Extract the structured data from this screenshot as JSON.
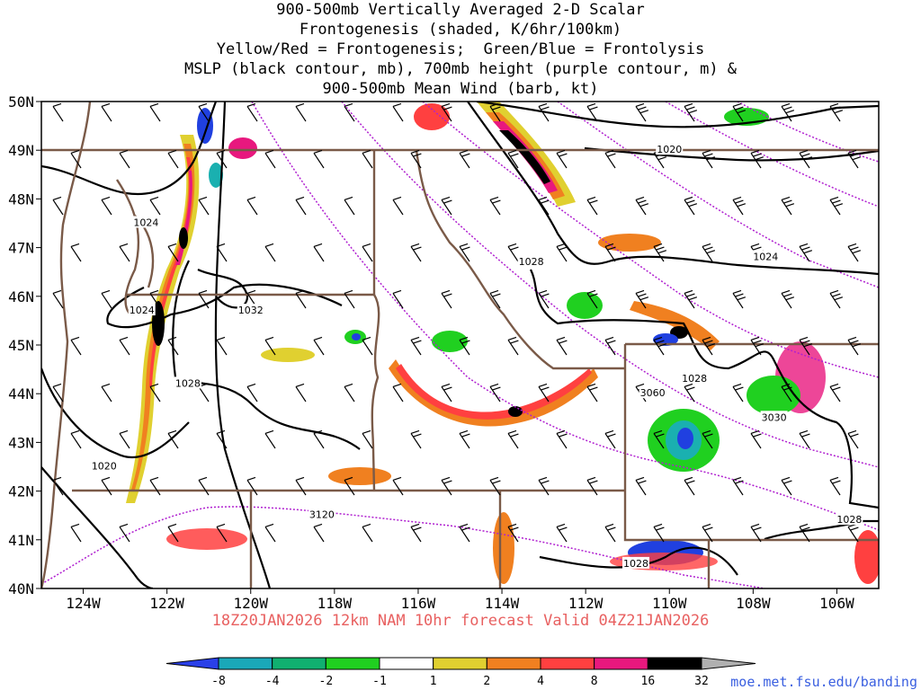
{
  "title": {
    "lines": [
      "900-500mb Vertically Averaged 2-D Scalar",
      "Frontogenesis (shaded, K/6hr/100km)",
      "Yellow/Red = Frontogenesis;  Green/Blue = Frontolysis",
      "MSLP (black contour, mb), 700mb height (purple contour, m) &",
      "900-500mb Mean Wind (barb, kt)"
    ]
  },
  "map": {
    "lat_labels": [
      "50N",
      "49N",
      "48N",
      "47N",
      "46N",
      "45N",
      "44N",
      "43N",
      "42N",
      "41N",
      "40N"
    ],
    "lon_labels": [
      "124W",
      "122W",
      "120W",
      "118W",
      "116W",
      "114W",
      "112W",
      "110W",
      "108W",
      "106W"
    ],
    "lat_range": [
      40,
      50
    ],
    "lon_range": [
      -125,
      -105
    ],
    "mslp_labels": [
      {
        "text": "1020",
        "lon": -110.0,
        "lat": 49.0
      },
      {
        "text": "1024",
        "lon": -122.5,
        "lat": 47.5
      },
      {
        "text": "1028",
        "lon": -113.3,
        "lat": 46.7
      },
      {
        "text": "1024",
        "lon": -107.7,
        "lat": 46.8
      },
      {
        "text": "1024",
        "lon": -122.6,
        "lat": 45.7
      },
      {
        "text": "1032",
        "lon": -120.0,
        "lat": 45.7
      },
      {
        "text": "1028",
        "lon": -109.4,
        "lat": 44.3
      },
      {
        "text": "1028",
        "lon": -121.5,
        "lat": 44.2
      },
      {
        "text": "1020",
        "lon": -123.5,
        "lat": 42.5
      },
      {
        "text": "1028",
        "lon": -105.7,
        "lat": 41.4
      },
      {
        "text": "1028",
        "lon": -110.8,
        "lat": 40.5
      }
    ],
    "height_labels": [
      {
        "text": "3060",
        "lon": -110.4,
        "lat": 44.0
      },
      {
        "text": "3030",
        "lon": -107.5,
        "lat": 43.5
      },
      {
        "text": "3120",
        "lon": -118.3,
        "lat": 41.5
      }
    ],
    "colors": {
      "frame": "#000000",
      "borders": "#7a5a48",
      "mslp": "#000000",
      "height": "#b020d0",
      "frontogenesis_strong": "#000000",
      "frontogenesis_high": "#e8187e",
      "frontogenesis_mid": "#ff4040",
      "frontogenesis_low": "#f08020",
      "frontogenesis_weak": "#e0d030",
      "frontolysis_weak": "#20d020",
      "frontolysis_mid": "#10b070",
      "frontolysis_high": "#1ab0b0",
      "frontolysis_strong": "#2040e0"
    }
  },
  "colorbar": {
    "ticks": [
      "-8",
      "-4",
      "-2",
      "-1",
      "1",
      "2",
      "4",
      "8",
      "16",
      "32"
    ],
    "colors": [
      "#2a40e8",
      "#1aa8b8",
      "#10b070",
      "#20d020",
      "#ffffff",
      "#e0d030",
      "#f08020",
      "#ff4040",
      "#e8187e",
      "#000000",
      "#b0b0b0"
    ]
  },
  "forecast_line": "18Z20JAN2026 12km NAM 10hr forecast Valid 04Z21JAN2026",
  "credit": "moe.met.fsu.edu/banding"
}
